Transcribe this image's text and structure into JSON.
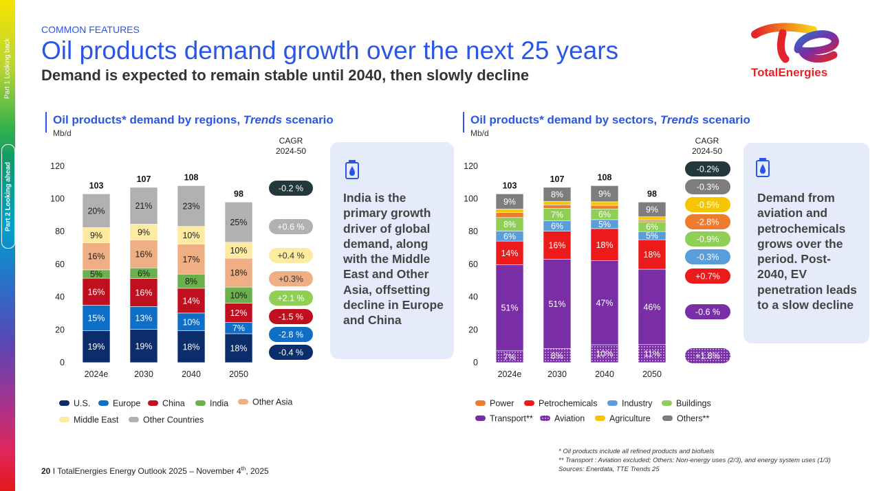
{
  "sidebar": {
    "part1": "Part 1 Looking back",
    "part2": "Part 2 Looking ahead"
  },
  "header": {
    "kicker": "COMMON FEATURES",
    "title": "Oil products demand growth over the next 25 years",
    "subtitle": "Demand is expected to remain stable until 2040, then slowly decline"
  },
  "logo": {
    "text": "TotalEnergies"
  },
  "colors": {
    "accent": "#2a56e8",
    "us": "#0b2d6b",
    "europe": "#0f6fc6",
    "china": "#c00f1f",
    "india": "#6ab04c",
    "other_asia": "#f0ae84",
    "middle_east": "#feeaa0",
    "other_countries": "#b1b1b1",
    "power": "#ee7c2f",
    "petrochemicals": "#ec1a1a",
    "industry": "#5a9ddb",
    "buildings": "#8fcf55",
    "transport": "#7a2ea6",
    "aviation": "#7a2ea6",
    "agriculture": "#f7c602",
    "others": "#7d7d7d"
  },
  "left_panel": {
    "title_pre": "Oil products* demand by regions, ",
    "title_em": "Trends",
    "title_post": " scenario",
    "unit": "Mb/d",
    "cagr_header_1": "CAGR",
    "cagr_header_2": "2024-50",
    "callout": "India is the primary growth driver of global demand, along with the Middle East and Other Asia, offsetting decline in Europe and China"
  },
  "right_panel": {
    "title_pre": "Oil products* demand by sectors, ",
    "title_em": "Trends",
    "title_post": " scenario",
    "unit": "Mb/d",
    "cagr_header_1": "CAGR",
    "cagr_header_2": "2024-50",
    "callout": "Demand from aviation and petrochemicals grows over the period. Post-2040, EV penetration leads to a slow decline"
  },
  "chart_data": [
    {
      "type": "bar",
      "stacked": true,
      "title": "Oil products* demand by regions, Trends scenario",
      "ylabel": "Mb/d",
      "ylim": [
        0,
        120
      ],
      "yticks": [
        "0",
        "20",
        "40",
        "60",
        "80",
        "100",
        "120"
      ],
      "categories": [
        "2024e",
        "2030",
        "2040",
        "2050"
      ],
      "totals": [
        "103",
        "107",
        "108",
        "98"
      ],
      "total_values": [
        103,
        107,
        108,
        98
      ],
      "series": [
        {
          "name": "U.S.",
          "color": "#0b2d6b",
          "label_color": "#ffffff",
          "shares": [
            19,
            19,
            18,
            18
          ],
          "labels": [
            "19%",
            "19%",
            "18%",
            "18%"
          ],
          "cagr": "-0.4 %",
          "cagr_bg": "#0b2d6b",
          "cagr_fg": "#ffffff"
        },
        {
          "name": "Europe",
          "color": "#0f6fc6",
          "label_color": "#ffffff",
          "shares": [
            15,
            13,
            10,
            7
          ],
          "labels": [
            "15%",
            "13%",
            "10%",
            "7%"
          ],
          "cagr": "-2.8 %",
          "cagr_bg": "#0f6fc6",
          "cagr_fg": "#ffffff"
        },
        {
          "name": "China",
          "color": "#c00f1f",
          "label_color": "#ffffff",
          "shares": [
            16,
            16,
            14,
            12
          ],
          "labels": [
            "16%",
            "16%",
            "14%",
            "12%"
          ],
          "cagr": "-1.5 %",
          "cagr_bg": "#c00f1f",
          "cagr_fg": "#ffffff"
        },
        {
          "name": "India",
          "color": "#6ab04c",
          "label_color": "#1d1d1b",
          "shares": [
            5,
            6,
            8,
            10
          ],
          "labels": [
            "5%",
            "6%",
            "8%",
            "10%"
          ],
          "cagr": "+2.1 %",
          "cagr_bg": "#8fcf55",
          "cagr_fg": "#ffffff"
        },
        {
          "name": "Other Asia",
          "color": "#f0ae84",
          "label_color": "#1d1d1b",
          "shares": [
            16,
            16,
            17,
            18
          ],
          "labels": [
            "16%",
            "16%",
            "17%",
            "18%"
          ],
          "cagr": "+0.3%",
          "cagr_bg": "#f0ae84",
          "cagr_fg": "#333333"
        },
        {
          "name": "Middle East",
          "color": "#feeaa0",
          "label_color": "#1d1d1b",
          "shares": [
            9,
            9,
            10,
            10
          ],
          "labels": [
            "9%",
            "9%",
            "10%",
            "10%"
          ],
          "cagr": "+0.4 %",
          "cagr_bg": "#feeaa0",
          "cagr_fg": "#333333"
        },
        {
          "name": "Other Countries",
          "color": "#b1b1b1",
          "label_color": "#1d1d1b",
          "shares": [
            20,
            21,
            23,
            25
          ],
          "labels": [
            "20%",
            "21%",
            "23%",
            "25%"
          ],
          "cagr": "+0.6 %",
          "cagr_bg": "#b1b1b1",
          "cagr_fg": "#ffffff"
        }
      ],
      "total_cagr": "-0.2 %",
      "total_cagr_bg": "#22383a",
      "legend": [
        {
          "name": "U.S.",
          "color": "#0b2d6b"
        },
        {
          "name": "Europe",
          "color": "#0f6fc6"
        },
        {
          "name": "China",
          "color": "#c00f1f"
        },
        {
          "name": "India",
          "color": "#6ab04c"
        },
        {
          "name": "Other Asia",
          "color": "#f0ae84"
        },
        {
          "name": "Middle East",
          "color": "#feeaa0"
        },
        {
          "name": "Other Countries",
          "color": "#b1b1b1"
        }
      ]
    },
    {
      "type": "bar",
      "stacked": true,
      "title": "Oil products* demand by sectors, Trends scenario",
      "ylabel": "Mb/d",
      "ylim": [
        0,
        120
      ],
      "yticks": [
        "0",
        "20",
        "40",
        "60",
        "80",
        "100",
        "120"
      ],
      "categories": [
        "2024e",
        "2030",
        "2040",
        "2050"
      ],
      "totals": [
        "103",
        "107",
        "108",
        "98"
      ],
      "total_values": [
        103,
        107,
        108,
        98
      ],
      "series": [
        {
          "name": "Aviation",
          "color": "#7a2ea6",
          "pattern": true,
          "label_color": "#ffffff",
          "shares": [
            7,
            8,
            10,
            11
          ],
          "labels": [
            "7%",
            "8%",
            "10%",
            "11%"
          ],
          "cagr": "+1.8%",
          "cagr_bg": "#7a2ea6",
          "cagr_fg": "#ffffff",
          "cagr_pattern": true
        },
        {
          "name": "Transport**",
          "color": "#7a2ea6",
          "label_color": "#ffffff",
          "shares": [
            51,
            51,
            47,
            46
          ],
          "labels": [
            "51%",
            "51%",
            "47%",
            "46%"
          ],
          "cagr": "-0.6 %",
          "cagr_bg": "#7a2ea6",
          "cagr_fg": "#ffffff"
        },
        {
          "name": "Petrochemicals",
          "color": "#ec1a1a",
          "label_color": "#ffffff",
          "shares": [
            14,
            16,
            18,
            18
          ],
          "labels": [
            "14%",
            "16%",
            "18%",
            "18%"
          ],
          "cagr": "+0.7%",
          "cagr_bg": "#ec1a1a",
          "cagr_fg": "#ffffff"
        },
        {
          "name": "Industry",
          "color": "#5a9ddb",
          "label_color": "#ffffff",
          "shares": [
            6,
            6,
            5,
            5
          ],
          "labels": [
            "6%",
            "6%",
            "5%",
            "5%"
          ],
          "cagr": "-0.3%",
          "cagr_bg": "#5a9ddb",
          "cagr_fg": "#ffffff"
        },
        {
          "name": "Buildings",
          "color": "#8fcf55",
          "label_color": "#ffffff",
          "shares": [
            8,
            7,
            6,
            6
          ],
          "labels": [
            "8%",
            "7%",
            "6%",
            "6%"
          ],
          "cagr": "-0.9%",
          "cagr_bg": "#8fcf55",
          "cagr_fg": "#ffffff"
        },
        {
          "name": "Power",
          "color": "#ee7c2f",
          "label_color": "#ffffff",
          "shares": [
            3,
            2,
            2,
            1
          ],
          "labels": [
            "",
            "",
            "",
            ""
          ],
          "cagr": "-2.8%",
          "cagr_bg": "#ee7c2f",
          "cagr_fg": "#ffffff"
        },
        {
          "name": "Agriculture",
          "color": "#f7c602",
          "label_color": "#ffffff",
          "shares": [
            2,
            2,
            2,
            2
          ],
          "labels": [
            "",
            "",
            "",
            ""
          ],
          "cagr": "-0.5%",
          "cagr_bg": "#f7c602",
          "cagr_fg": "#ffffff"
        },
        {
          "name": "Others**",
          "color": "#7d7d7d",
          "label_color": "#ffffff",
          "shares": [
            9,
            8,
            9,
            9
          ],
          "labels": [
            "9%",
            "8%",
            "9%",
            "9%"
          ],
          "cagr": "-0.3%",
          "cagr_bg": "#7d7d7d",
          "cagr_fg": "#ffffff"
        }
      ],
      "total_cagr": "-0.2%",
      "total_cagr_bg": "#22383a",
      "legend": [
        {
          "name": "Power",
          "color": "#ee7c2f"
        },
        {
          "name": "Petrochemicals",
          "color": "#ec1a1a"
        },
        {
          "name": "Industry",
          "color": "#5a9ddb"
        },
        {
          "name": "Buildings",
          "color": "#8fcf55"
        },
        {
          "name": "Transport**",
          "color": "#7a2ea6"
        },
        {
          "name": "Aviation",
          "color": "#7a2ea6",
          "pattern": true
        },
        {
          "name": "Agriculture",
          "color": "#f7c602"
        },
        {
          "name": "Others**",
          "color": "#7d7d7d"
        }
      ]
    }
  ],
  "footer": {
    "page": "20",
    "text": " I TotalEnergies Energy Outlook 2025 – November 4",
    "sup": "th",
    "year": ", 2025"
  },
  "notes": {
    "line1": "* Oil products include all refined products and biofuels",
    "line2": "** Transport : Aviation excluded; Others: Non-energy uses (2/3), and energy system uses (1/3)",
    "line3": "Sources: Enerdata, TTE Trends 25"
  }
}
